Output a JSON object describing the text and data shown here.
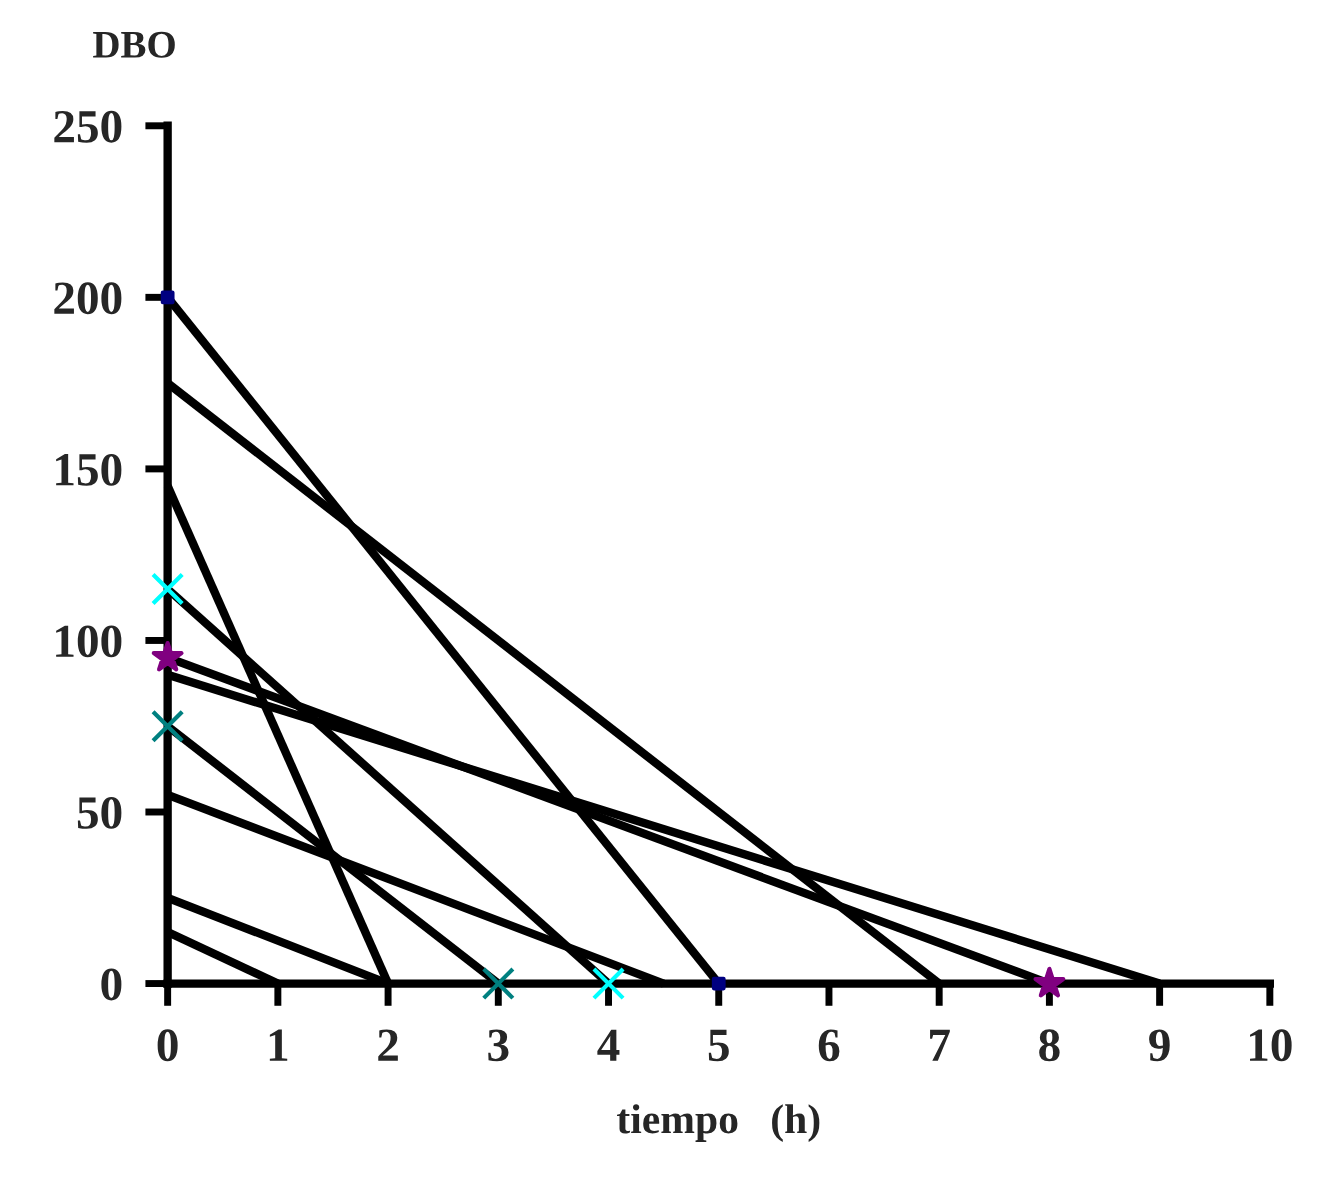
{
  "chart_data": {
    "type": "line",
    "ylabel": "DBO",
    "xlabel": "tiempo   (h)",
    "xlim": [
      0,
      10
    ],
    "xticks": [
      0,
      1,
      2,
      3,
      4,
      5,
      6,
      7,
      8,
      9,
      10
    ],
    "ylim": [
      0,
      250
    ],
    "yticks": [
      0,
      50,
      100,
      150,
      200,
      250
    ],
    "grid": false,
    "legend": false,
    "line_style": "solid",
    "series": [
      {
        "color": "#000000",
        "x": [
          0,
          5
        ],
        "values": [
          200,
          0
        ]
      },
      {
        "color": "#000000",
        "x": [
          0,
          7
        ],
        "values": [
          175,
          0
        ]
      },
      {
        "color": "#000000",
        "x": [
          0,
          2
        ],
        "values": [
          145,
          0
        ]
      },
      {
        "color": "#000000",
        "x": [
          0,
          4
        ],
        "values": [
          115,
          0
        ]
      },
      {
        "color": "#000000",
        "x": [
          0,
          8
        ],
        "values": [
          95,
          0
        ]
      },
      {
        "color": "#000000",
        "x": [
          0,
          9
        ],
        "values": [
          90,
          0
        ]
      },
      {
        "color": "#000000",
        "x": [
          0,
          3
        ],
        "values": [
          75,
          0
        ]
      },
      {
        "color": "#000000",
        "x": [
          0,
          4.5
        ],
        "values": [
          55,
          0
        ]
      },
      {
        "color": "#000000",
        "x": [
          0,
          2
        ],
        "values": [
          25,
          0
        ]
      },
      {
        "color": "#000000",
        "x": [
          0,
          1
        ],
        "values": [
          15,
          0
        ]
      },
      {
        "type": "scatter",
        "color": "#000080",
        "marker": "square",
        "x": [
          0,
          5
        ],
        "values": [
          200,
          0
        ]
      },
      {
        "type": "scatter",
        "color": "#00ffff",
        "marker": "cross",
        "x": [
          0,
          4
        ],
        "values": [
          115,
          0
        ]
      },
      {
        "type": "scatter",
        "color": "#800080",
        "marker": "star",
        "x": [
          0,
          8
        ],
        "values": [
          95,
          0
        ]
      },
      {
        "type": "scatter",
        "color": "#008080",
        "marker": "cross",
        "x": [
          0,
          3
        ],
        "values": [
          75,
          0
        ]
      }
    ]
  }
}
